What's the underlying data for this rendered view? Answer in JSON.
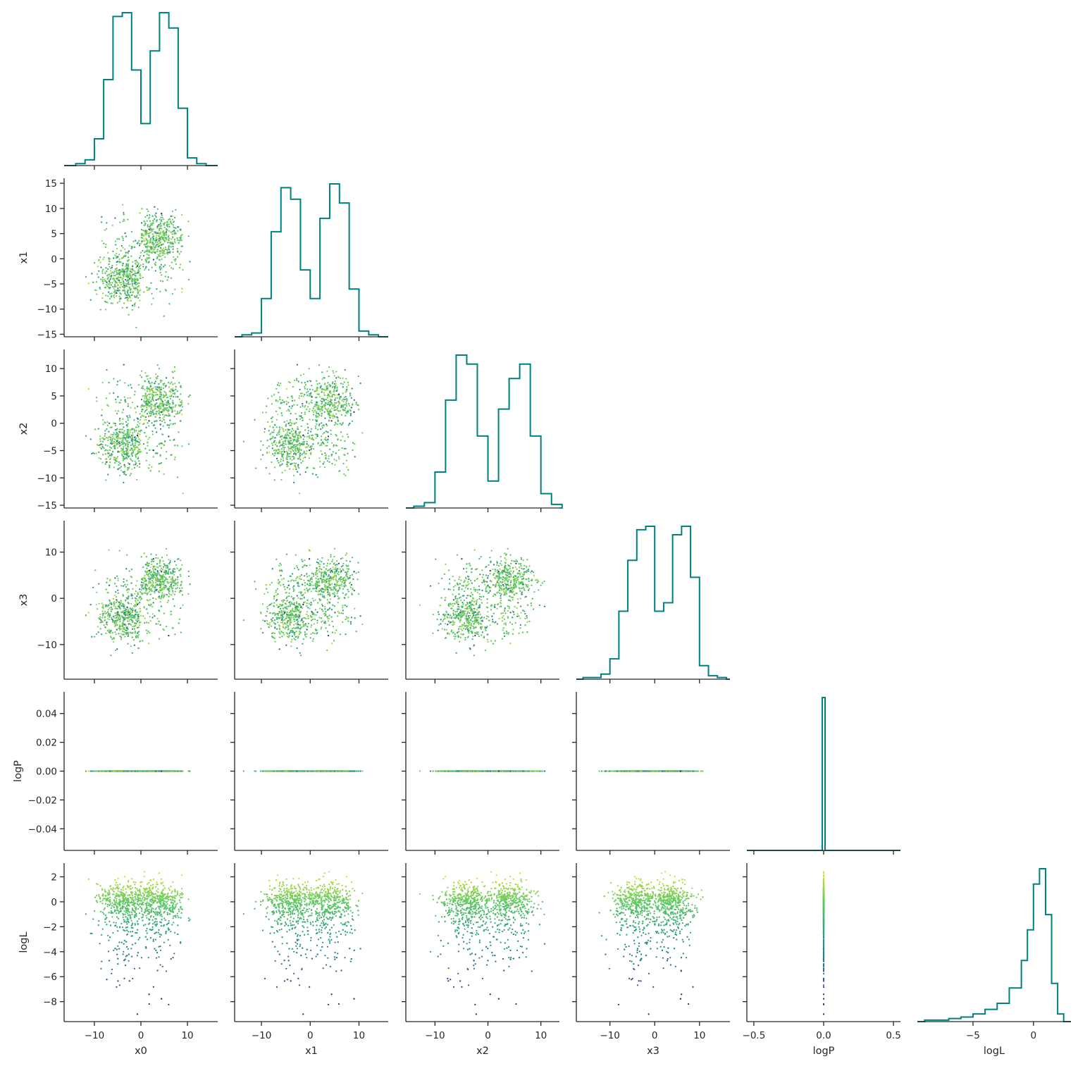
{
  "chart_data": {
    "type": "scatter",
    "layout": "corner pair plot",
    "variables": [
      "x0",
      "x1",
      "x2",
      "x3",
      "logP",
      "logL"
    ],
    "axis_labels": {
      "x0": "x0",
      "x1": "x1",
      "x2": "x2",
      "x3": "x3",
      "logP": "logP",
      "logL": "logL"
    },
    "ranges": {
      "x0": [
        -16.5,
        16.5
      ],
      "x1": [
        -15.5,
        16
      ],
      "x2": [
        -15.5,
        13.5
      ],
      "x3": [
        -17.5,
        16.8
      ],
      "logP": [
        -0.055,
        0.055
      ],
      "logL": [
        -9.6,
        3.1
      ]
    },
    "ticks": {
      "x0": [
        -10,
        0,
        10
      ],
      "x1": [
        -10,
        0,
        10
      ],
      "x2": [
        -10,
        0,
        10
      ],
      "x3": [
        -10,
        0,
        10
      ],
      "logP": [
        -0.5,
        0.0,
        0.5
      ],
      "logL": [
        -5,
        0
      ]
    },
    "tick_labels": {
      "x0": [
        "−10",
        "0",
        "10"
      ],
      "x1": [
        "−10",
        "0",
        "10"
      ],
      "x2": [
        "−10",
        "0",
        "10"
      ],
      "x3": [
        "−10",
        "0",
        "10"
      ],
      "logP": [
        "−0.5",
        "0.0",
        "0.5"
      ],
      "logL": [
        "−5",
        "0"
      ]
    },
    "y_ticks": {
      "x1": [
        -15,
        -10,
        -5,
        0,
        5,
        10,
        15
      ],
      "x2": [
        -15,
        -10,
        -5,
        0,
        5,
        10
      ],
      "x3": [
        -10,
        0,
        10
      ],
      "logP": [
        -0.04,
        -0.02,
        0.0,
        0.02,
        0.04
      ],
      "logL": [
        -8,
        -6,
        -4,
        -2,
        0,
        2
      ]
    },
    "y_tick_labels": {
      "x1": [
        "−15",
        "−10",
        "−5",
        "0",
        "5",
        "10",
        "15"
      ],
      "x2": [
        "−15",
        "−10",
        "−5",
        "0",
        "5",
        "10"
      ],
      "x3": [
        "−10",
        "0",
        "10"
      ],
      "logP": [
        "−0.04",
        "−0.02",
        "0.00",
        "0.02",
        "0.04"
      ],
      "logL": [
        "−8",
        "−6",
        "−4",
        "−2",
        "0",
        "2"
      ]
    },
    "diagonal": {
      "type": "step histogram",
      "color": "#008080",
      "logP_hist_range": [
        -0.55,
        0.55
      ]
    },
    "marginal_histograms": {
      "x0": {
        "edges": [
          -14,
          -12,
          -10,
          -8,
          -6,
          -4,
          -2,
          0,
          2,
          4,
          6,
          8,
          10,
          12,
          14
        ],
        "counts": [
          1,
          3,
          14,
          45,
          78,
          80,
          50,
          22,
          60,
          80,
          72,
          30,
          4,
          1
        ]
      },
      "x1": {
        "edges": [
          -14,
          -12,
          -10,
          -8,
          -6,
          -4,
          -2,
          0,
          2,
          4,
          6,
          8,
          10,
          12,
          14
        ],
        "counts": [
          1,
          2,
          20,
          55,
          78,
          72,
          35,
          20,
          62,
          80,
          70,
          25,
          3,
          1
        ]
      },
      "x2": {
        "edges": [
          -14,
          -12,
          -10,
          -8,
          -6,
          -4,
          -2,
          0,
          2,
          4,
          6,
          8,
          10,
          12,
          14
        ],
        "counts": [
          1,
          3,
          20,
          60,
          85,
          80,
          40,
          15,
          55,
          72,
          80,
          40,
          8,
          2
        ]
      },
      "x3": {
        "edges": [
          -16,
          -14,
          -12,
          -10,
          -8,
          -6,
          -4,
          -2,
          0,
          2,
          4,
          6,
          8,
          10,
          12,
          14,
          16
        ],
        "counts": [
          1,
          1,
          3,
          12,
          40,
          70,
          88,
          90,
          40,
          45,
          85,
          90,
          60,
          8,
          2,
          1
        ]
      },
      "logP": {
        "edges": [
          -0.55,
          -0.01,
          0.01,
          0.55
        ],
        "counts": [
          0,
          100,
          0
        ]
      },
      "logL": {
        "edges": [
          -9,
          -8,
          -7,
          -6,
          -5,
          -4,
          -3,
          -2,
          -1,
          -0.5,
          0,
          0.5,
          1,
          1.5,
          2,
          2.5
        ],
        "counts": [
          1,
          1,
          2,
          3,
          5,
          8,
          12,
          22,
          40,
          60,
          90,
          100,
          70,
          25,
          5
        ]
      }
    },
    "scatter_clusters": {
      "centers": [
        -4,
        4
      ],
      "logP_value": 0.0,
      "logL_peak": 0.5,
      "logL_range": [
        -9,
        2.5
      ]
    },
    "colormap": [
      "#440154",
      "#3b528b",
      "#21918c",
      "#5ec962",
      "#fde725"
    ],
    "color_variable": "logL",
    "grid": false,
    "title": "",
    "legend": "none"
  }
}
